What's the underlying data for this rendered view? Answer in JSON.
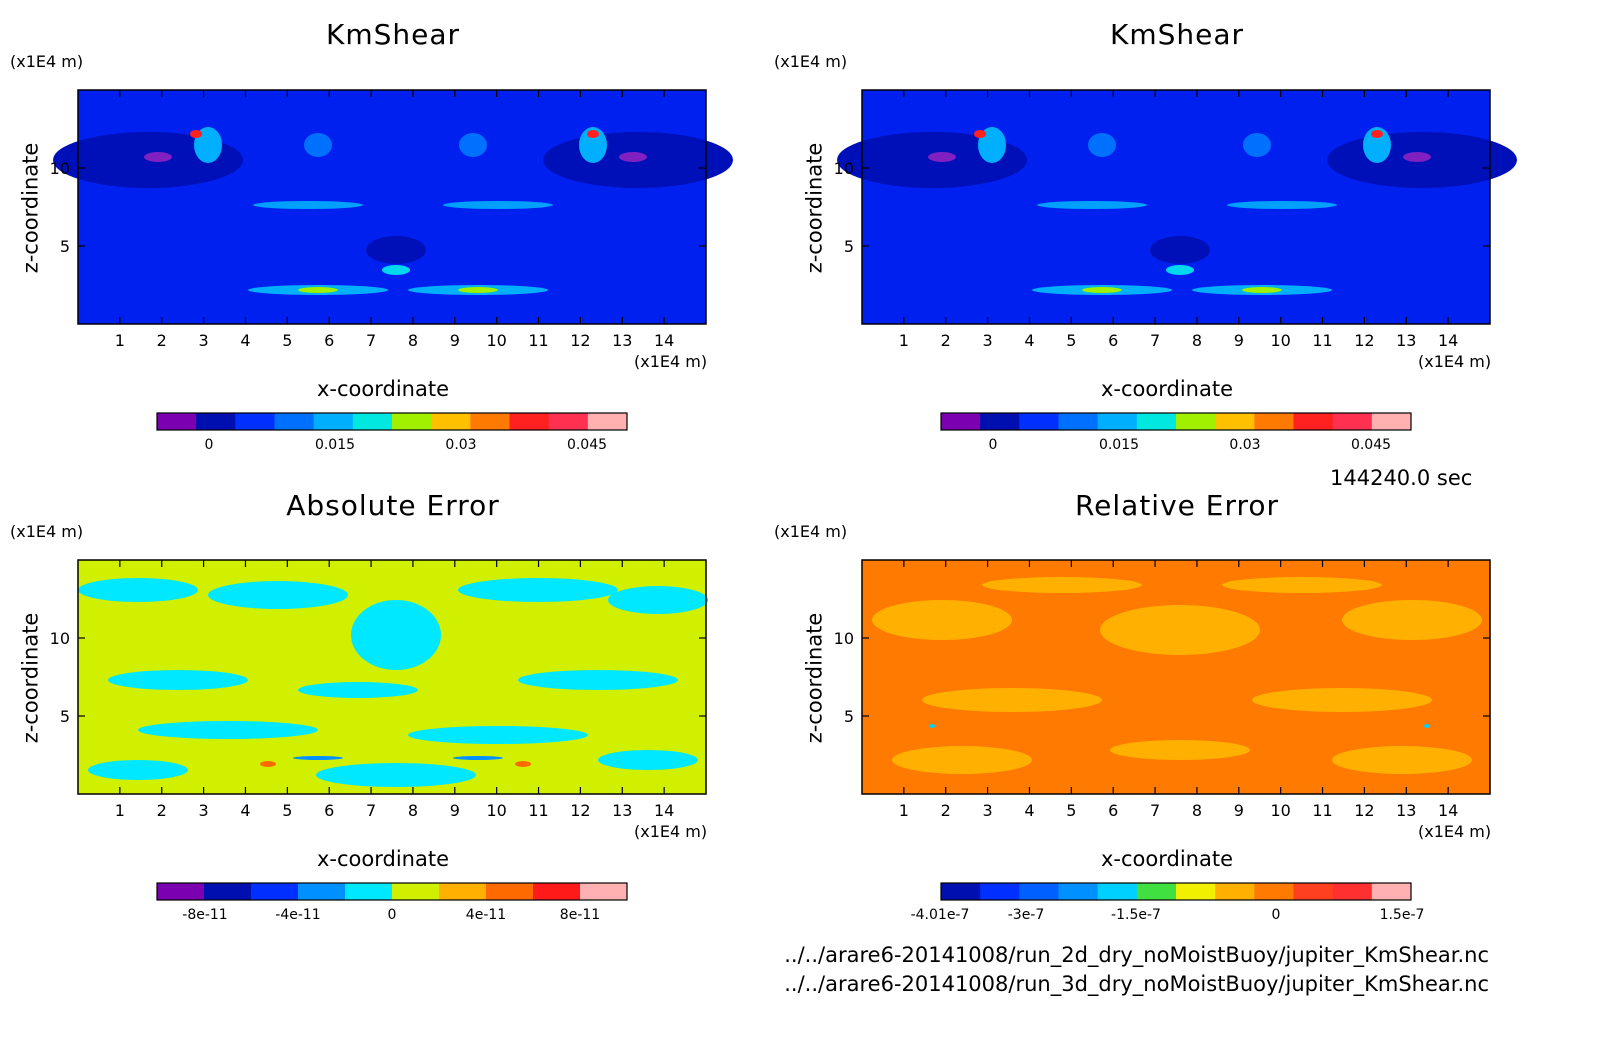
{
  "time_label": "144240.0 sec",
  "file_paths": [
    "../../arare6-20141008/run_2d_dry_noMoistBuoy/jupiter_KmShear.nc",
    "../../arare6-20141008/run_3d_dry_noMoistBuoy/jupiter_KmShear.nc"
  ],
  "chart_data": [
    {
      "type": "heatmap",
      "title": "KmShear",
      "xlabel": "x-coordinate",
      "ylabel": "z-coordinate",
      "x_unit": "(x1E4 m)",
      "y_unit": "(x1E4 m)",
      "xlim": [
        0,
        15
      ],
      "ylim": [
        0,
        15
      ],
      "x_ticks": [
        "1",
        "2",
        "3",
        "4",
        "5",
        "6",
        "7",
        "8",
        "9",
        "10",
        "11",
        "12",
        "13",
        "14"
      ],
      "y_ticks": [
        "5",
        "10"
      ],
      "colorbar": {
        "ticks": [
          "0",
          "0.015",
          "0.03",
          "0.045"
        ],
        "colors": [
          "#7a00b0",
          "#0010b0",
          "#0030ff",
          "#0070ff",
          "#00b0ff",
          "#00e8e0",
          "#a0f000",
          "#ffc000",
          "#ff7a00",
          "#ff2020",
          "#ff3050",
          "#ffb0b0"
        ]
      }
    },
    {
      "type": "heatmap",
      "title": "KmShear",
      "xlabel": "x-coordinate",
      "ylabel": "z-coordinate",
      "x_unit": "(x1E4 m)",
      "y_unit": "(x1E4 m)",
      "xlim": [
        0,
        15
      ],
      "ylim": [
        0,
        15
      ],
      "x_ticks": [
        "1",
        "2",
        "3",
        "4",
        "5",
        "6",
        "7",
        "8",
        "9",
        "10",
        "11",
        "12",
        "13",
        "14"
      ],
      "y_ticks": [
        "5",
        "10"
      ],
      "colorbar": {
        "ticks": [
          "0",
          "0.015",
          "0.03",
          "0.045"
        ],
        "colors": [
          "#7a00b0",
          "#0010b0",
          "#0030ff",
          "#0070ff",
          "#00b0ff",
          "#00e8e0",
          "#a0f000",
          "#ffc000",
          "#ff7a00",
          "#ff2020",
          "#ff3050",
          "#ffb0b0"
        ]
      }
    },
    {
      "type": "heatmap",
      "title": "Absolute Error",
      "xlabel": "x-coordinate",
      "ylabel": "z-coordinate",
      "x_unit": "(x1E4 m)",
      "y_unit": "(x1E4 m)",
      "xlim": [
        0,
        15
      ],
      "ylim": [
        0,
        15
      ],
      "x_ticks": [
        "1",
        "2",
        "3",
        "4",
        "5",
        "6",
        "7",
        "8",
        "9",
        "10",
        "11",
        "12",
        "13",
        "14"
      ],
      "y_ticks": [
        "5",
        "10"
      ],
      "colorbar": {
        "ticks": [
          "-8e-11",
          "-4e-11",
          "0",
          "4e-11",
          "8e-11"
        ],
        "colors": [
          "#7a00b0",
          "#0010b0",
          "#0030ff",
          "#0090ff",
          "#00e8ff",
          "#d0f000",
          "#ffb000",
          "#ff6a00",
          "#ff1a1a",
          "#ffb0b0"
        ]
      }
    },
    {
      "type": "heatmap",
      "title": "Relative Error",
      "xlabel": "x-coordinate",
      "ylabel": "z-coordinate",
      "x_unit": "(x1E4 m)",
      "y_unit": "(x1E4 m)",
      "xlim": [
        0,
        15
      ],
      "ylim": [
        0,
        15
      ],
      "x_ticks": [
        "1",
        "2",
        "3",
        "4",
        "5",
        "6",
        "7",
        "8",
        "9",
        "10",
        "11",
        "12",
        "13",
        "14"
      ],
      "y_ticks": [
        "5",
        "10"
      ],
      "colorbar": {
        "ticks": [
          "-4.01e-7",
          "-3e-7",
          "-1.5e-7",
          "0",
          "1.5e-7"
        ],
        "colors": [
          "#0010b0",
          "#0030ff",
          "#0060ff",
          "#0090ff",
          "#00d0ff",
          "#40e040",
          "#f0f000",
          "#ffb000",
          "#ff7a00",
          "#ff4020",
          "#ff3030",
          "#ffb0b0"
        ]
      }
    }
  ]
}
